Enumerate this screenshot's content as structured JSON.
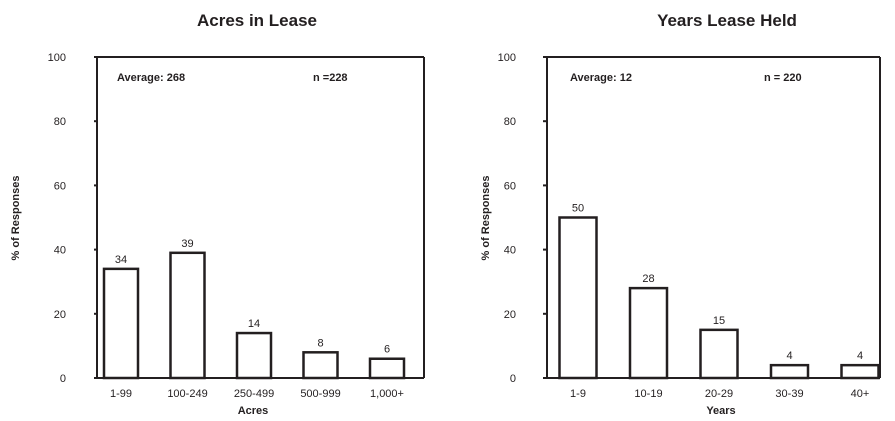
{
  "chart_data": [
    {
      "type": "bar",
      "title": "Acres in Lease",
      "xlabel": "Acres",
      "ylabel": "% of Responses",
      "categories": [
        "1-99",
        "100-249",
        "250-499",
        "500-999",
        "1,000+"
      ],
      "values": [
        34,
        39,
        14,
        8,
        6
      ],
      "ylim": [
        0,
        100
      ],
      "yticks": [
        0,
        20,
        40,
        60,
        80,
        100
      ],
      "annotations": {
        "average": "Average: 268",
        "n": "n =228"
      },
      "grid": false,
      "bar_fill": "#ffffff",
      "bar_stroke": "#231f20"
    },
    {
      "type": "bar",
      "title": "Years Lease Held",
      "xlabel": "Years",
      "ylabel": "% of Responses",
      "categories": [
        "1-9",
        "10-19",
        "20-29",
        "30-39",
        "40+"
      ],
      "values": [
        50,
        28,
        15,
        4,
        4
      ],
      "ylim": [
        0,
        100
      ],
      "yticks": [
        0,
        20,
        40,
        60,
        80,
        100
      ],
      "annotations": {
        "average": "Average: 12",
        "n": "n =  220"
      },
      "grid": false,
      "bar_fill": "#ffffff",
      "bar_stroke": "#231f20"
    }
  ]
}
